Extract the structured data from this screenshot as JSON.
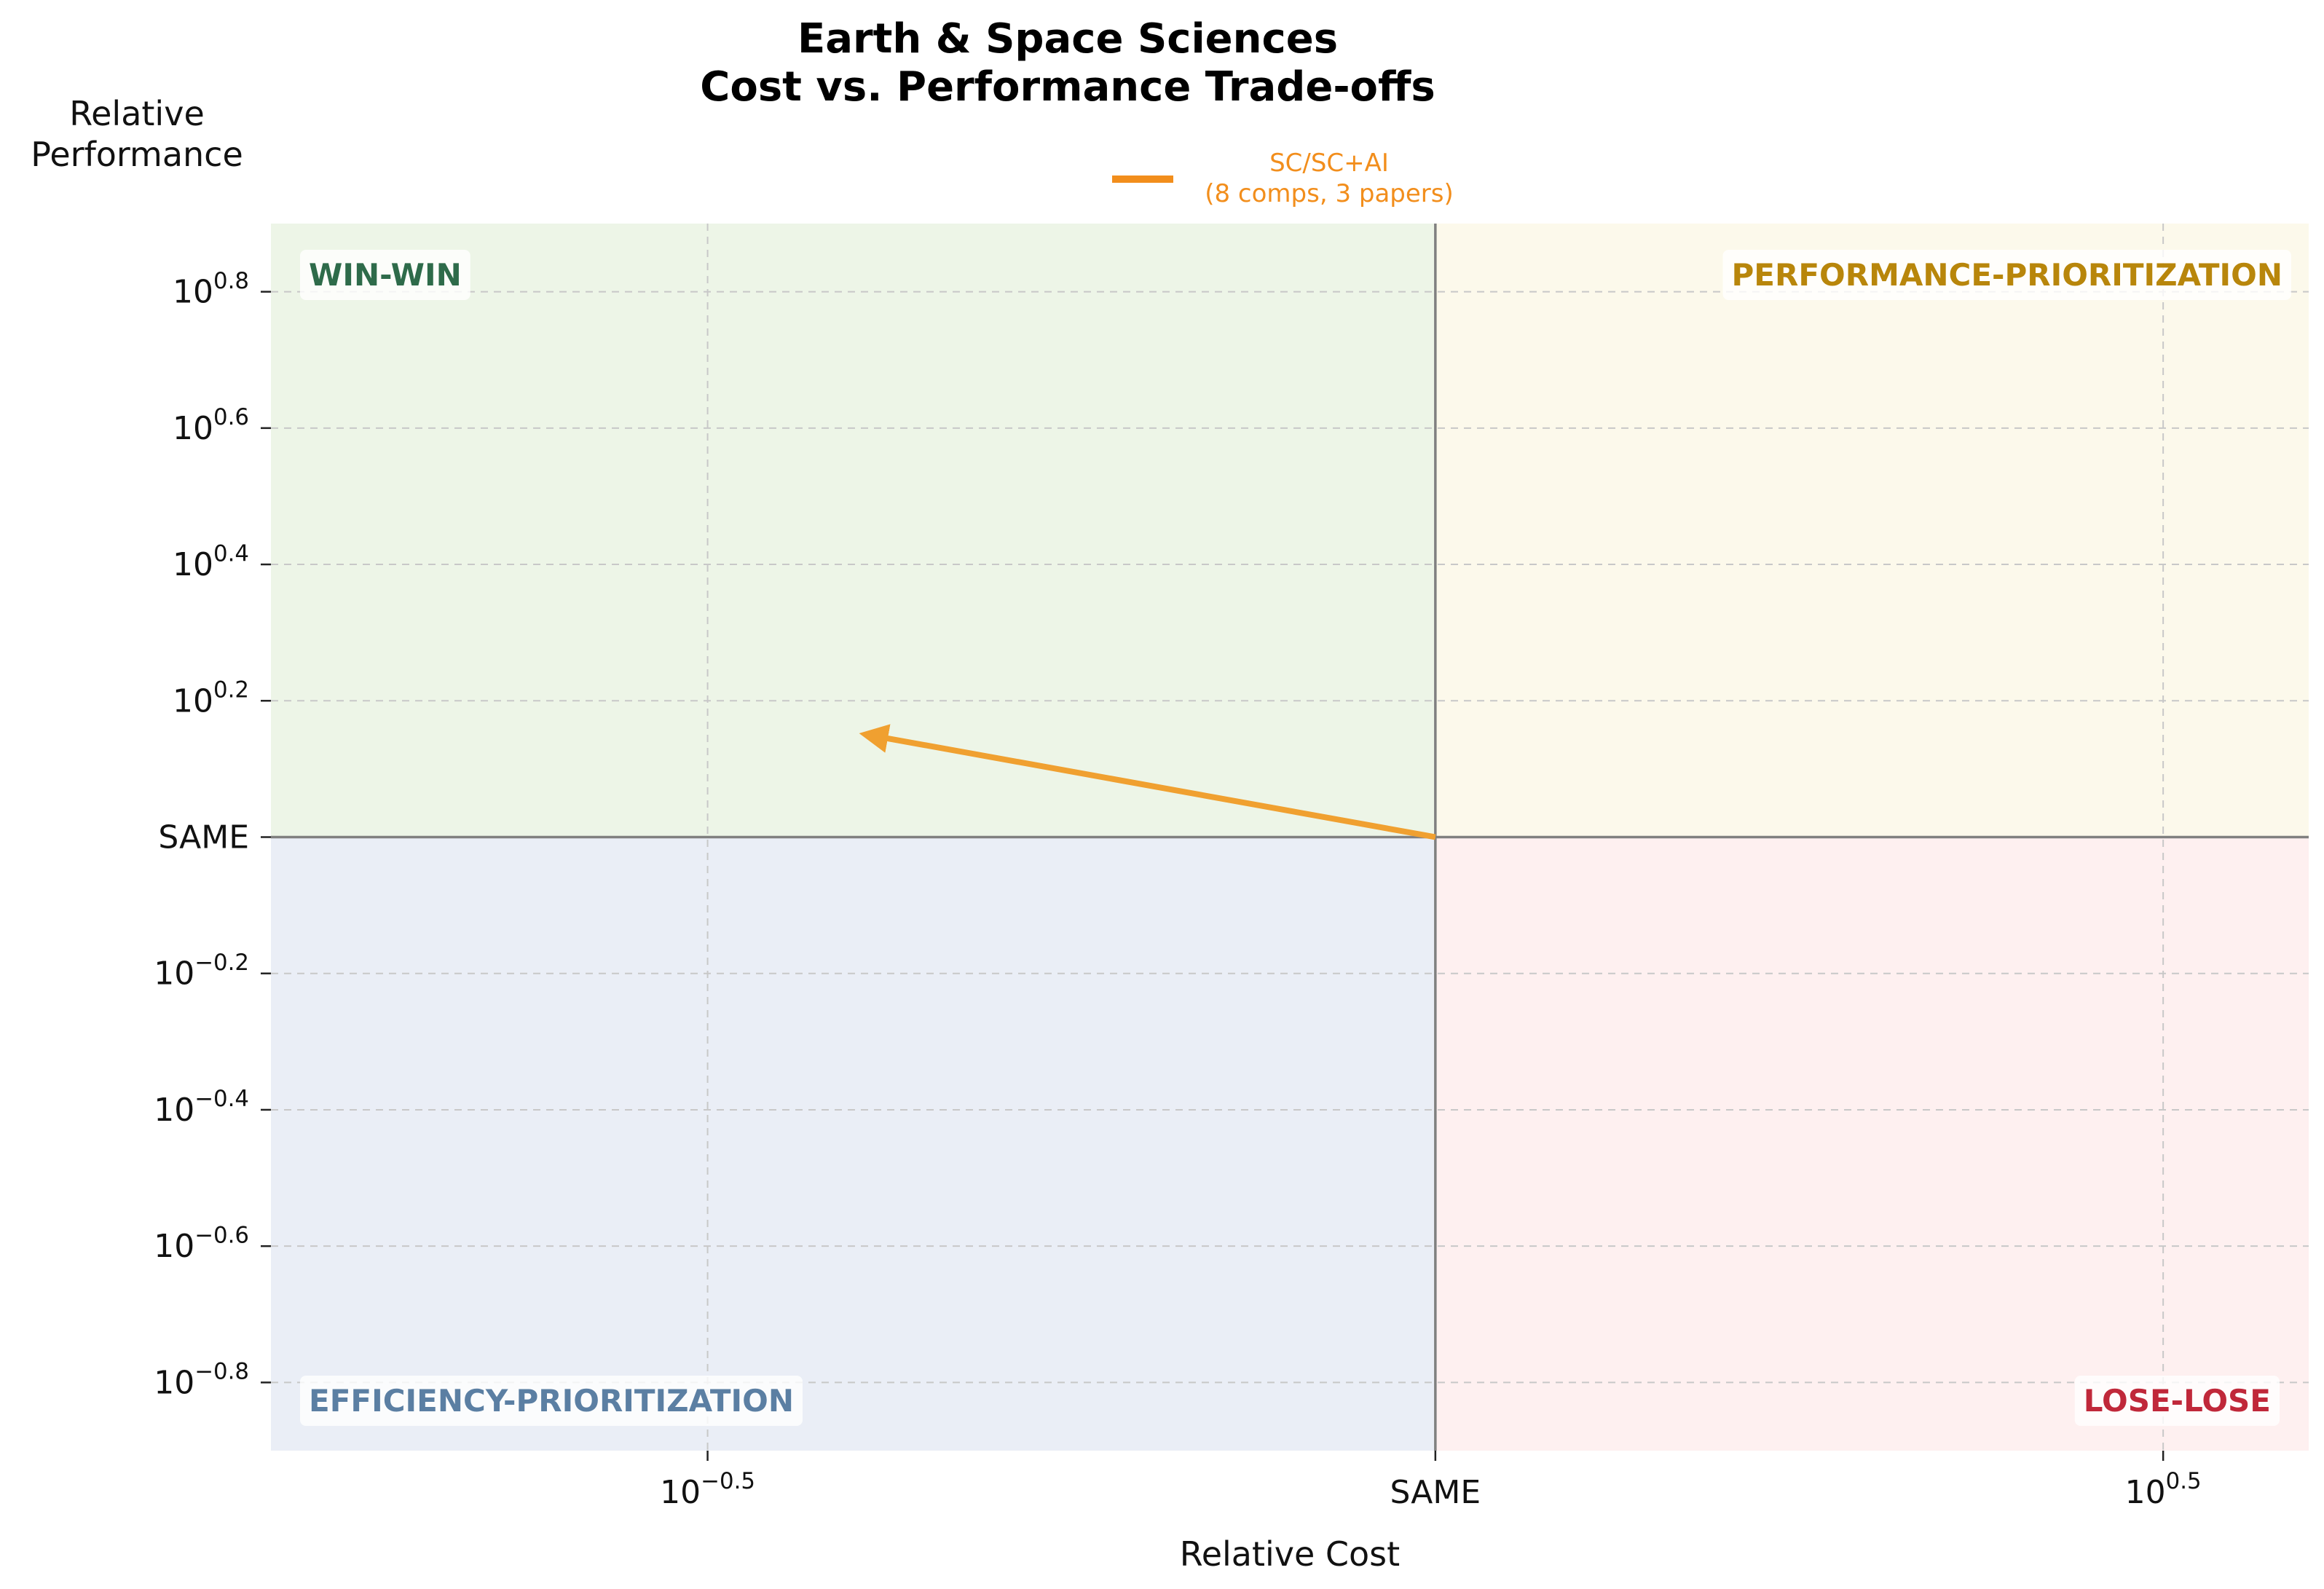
{
  "chart_data": {
    "type": "line",
    "title": "Earth & Space Sciences\nCost vs. Performance Trade-offs",
    "xlabel": "Relative Cost",
    "ylabel": "Relative\nPerformance",
    "xscale": "log10",
    "yscale": "log10",
    "xlim_exp": [
      -0.8,
      0.6
    ],
    "ylim_exp": [
      -0.9,
      0.9
    ],
    "x_ticks": [
      {
        "exp": -0.5,
        "label": "10^-0.5"
      },
      {
        "exp": 0,
        "label": "SAME"
      },
      {
        "exp": 0.5,
        "label": "10^0.5"
      }
    ],
    "y_ticks": [
      {
        "exp": 0.8,
        "label": "10^0.8"
      },
      {
        "exp": 0.6,
        "label": "10^0.6"
      },
      {
        "exp": 0.4,
        "label": "10^0.4"
      },
      {
        "exp": 0.2,
        "label": "10^0.2"
      },
      {
        "exp": 0,
        "label": "SAME"
      },
      {
        "exp": -0.2,
        "label": "10^-0.2"
      },
      {
        "exp": -0.4,
        "label": "10^-0.4"
      },
      {
        "exp": -0.6,
        "label": "10^-0.6"
      },
      {
        "exp": -0.8,
        "label": "10^-0.8"
      }
    ],
    "grid": true,
    "legend_position": "top-center",
    "series": [
      {
        "name": "SC/SC+AI\n(8 comps, 3 papers)",
        "color": "#F0A030",
        "legend_color": "#F28E1C",
        "style": "arrow",
        "from": {
          "x_exp": 0,
          "y_exp": 0
        },
        "to": {
          "x_exp": -0.39,
          "y_exp": 0.15
        }
      }
    ],
    "quadrants": [
      {
        "name": "win-win",
        "label": "WIN-WIN",
        "color": "#2E6B4A",
        "fill": "#EDF5E7",
        "position": "top-left"
      },
      {
        "name": "performance-prioritization",
        "label": "PERFORMANCE-PRIORITIZATION",
        "color": "#B8860B",
        "fill": "#FCF9EB",
        "position": "top-right"
      },
      {
        "name": "efficiency-prioritization",
        "label": "EFFICIENCY-PRIORITIZATION",
        "color": "#5B7FA3",
        "fill": "#EAEEF6",
        "position": "bottom-left"
      },
      {
        "name": "lose-lose",
        "label": "LOSE-LOSE",
        "color": "#C0283A",
        "fill": "#FEF0F0",
        "position": "bottom-right"
      }
    ]
  }
}
